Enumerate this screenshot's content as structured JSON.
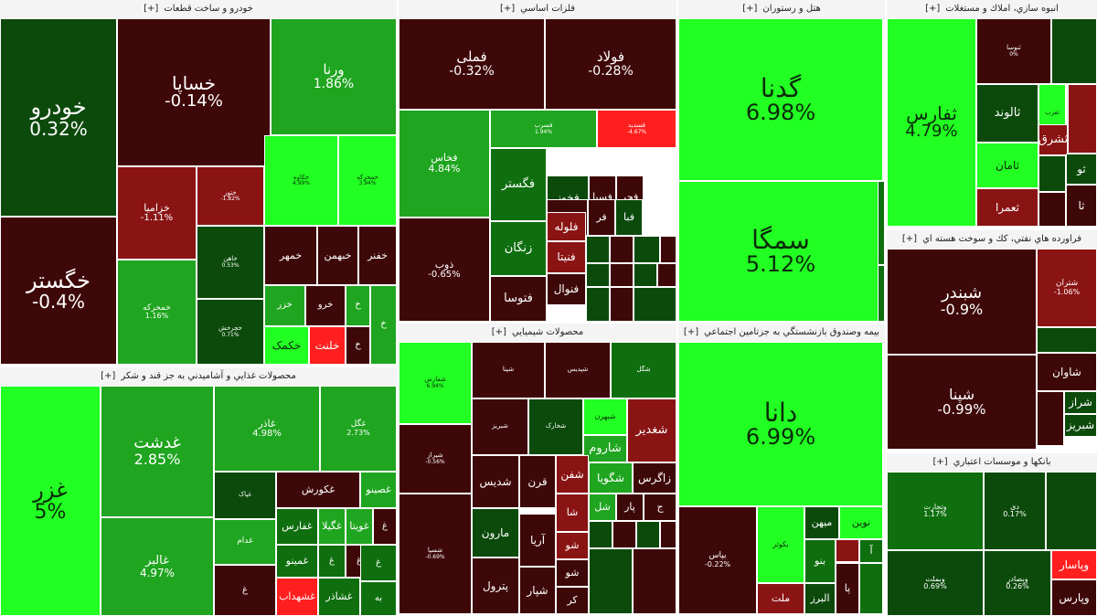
{
  "colors": {
    "pos3": "#22ff22",
    "pos2": "#1fa51f",
    "pos1": "#0f6f0f",
    "pos0": "#0c4a0c",
    "neg0": "#3e0808",
    "neg1": "#620f0f",
    "neg2": "#8a1414",
    "neg3": "#ff1f1f"
  },
  "chart_data": {
    "type": "treemap",
    "expand_label": "[+]",
    "sectors": [
      {
        "name": "خودرو و ساخت قطعات",
        "tiles": [
          {
            "symbol": "خودرو",
            "change": "0.32%",
            "tone": "pos0"
          },
          {
            "symbol": "خگستر",
            "change": "-0.4%",
            "tone": "neg0"
          },
          {
            "symbol": "خساپا",
            "change": "-0.14%",
            "tone": "neg0"
          },
          {
            "symbol": "ورنا",
            "change": "1.86%",
            "tone": "pos2"
          },
          {
            "symbol": "خزامیا",
            "change": "-1.11%",
            "tone": "neg2"
          },
          {
            "symbol": "ختور",
            "change": "-1.82%",
            "tone": "neg2"
          },
          {
            "symbol": "خکاوه",
            "change": "4.99%",
            "tone": "pos3"
          },
          {
            "symbol": "خمحرکه",
            "change": "3.94%",
            "tone": "pos3"
          },
          {
            "symbol": "خمحرکه",
            "change": "1.16%",
            "tone": "pos2"
          },
          {
            "symbol": "خاهن",
            "change": "0.53%",
            "tone": "pos0"
          },
          {
            "symbol": "خچرخش",
            "change": "0.71%",
            "tone": "pos0"
          },
          {
            "symbol": "خمهر",
            "change": "",
            "tone": "neg0"
          },
          {
            "symbol": "خبهمن",
            "change": "",
            "tone": "neg0"
          },
          {
            "symbol": "خفنر",
            "change": "",
            "tone": "neg0"
          },
          {
            "symbol": "خزر",
            "change": "",
            "tone": "pos2"
          },
          {
            "symbol": "خرو",
            "change": "",
            "tone": "neg0"
          },
          {
            "symbol": "خ",
            "change": "",
            "tone": "pos2"
          },
          {
            "symbol": "خکمک",
            "change": "",
            "tone": "pos3"
          },
          {
            "symbol": "خلنت",
            "change": "",
            "tone": "neg3"
          },
          {
            "symbol": "خ",
            "change": "",
            "tone": "neg0"
          },
          {
            "symbol": "خ",
            "change": "",
            "tone": "pos2"
          }
        ]
      },
      {
        "name": "فلزات اساسي",
        "tiles": [
          {
            "symbol": "فملی",
            "change": "-0.32%",
            "tone": "neg0"
          },
          {
            "symbol": "فولاد",
            "change": "-0.28%",
            "tone": "neg0"
          },
          {
            "symbol": "فخاس",
            "change": "4.84%",
            "tone": "pos2"
          },
          {
            "symbol": "فسرب",
            "change": "1.94%",
            "tone": "pos2"
          },
          {
            "symbol": "فسدید",
            "change": "-4.67%",
            "tone": "neg3"
          },
          {
            "symbol": "ذوب",
            "change": "-0.65%",
            "tone": "neg0"
          },
          {
            "symbol": "فگستر",
            "change": "",
            "tone": "pos1"
          },
          {
            "symbol": "زنگان",
            "change": "",
            "tone": "pos1"
          },
          {
            "symbol": "فتوسا",
            "change": "",
            "tone": "neg0"
          },
          {
            "symbol": "فخوز",
            "change": "",
            "tone": "pos0"
          },
          {
            "symbol": "فسبا",
            "change": "",
            "tone": "neg0"
          },
          {
            "symbol": "فجر",
            "change": "",
            "tone": "neg0"
          },
          {
            "symbol": "ف",
            "change": "",
            "tone": "neg0"
          },
          {
            "symbol": "فر",
            "change": "",
            "tone": "neg0"
          },
          {
            "symbol": "فبا",
            "change": "",
            "tone": "pos0"
          },
          {
            "symbol": "فلوله",
            "change": "",
            "tone": "neg2"
          },
          {
            "symbol": "فنيتا",
            "change": "",
            "tone": "neg2"
          },
          {
            "symbol": "فنوال",
            "change": "",
            "tone": "neg0"
          },
          {
            "symbol": "",
            "change": "",
            "tone": "pos0"
          },
          {
            "symbol": "",
            "change": "",
            "tone": "neg0"
          },
          {
            "symbol": "",
            "change": "",
            "tone": "pos0"
          },
          {
            "symbol": "",
            "change": "",
            "tone": "neg0"
          },
          {
            "symbol": "",
            "change": "",
            "tone": "pos0"
          },
          {
            "symbol": "",
            "change": "",
            "tone": "neg0"
          },
          {
            "symbol": "",
            "change": "",
            "tone": "pos0"
          },
          {
            "symbol": "",
            "change": "",
            "tone": "neg0"
          },
          {
            "symbol": "",
            "change": "",
            "tone": "pos0"
          },
          {
            "symbol": "",
            "change": "",
            "tone": "neg0"
          },
          {
            "symbol": "",
            "change": "",
            "tone": "pos0"
          }
        ]
      },
      {
        "name": "هتل و رستوران",
        "tiles": [
          {
            "symbol": "گدنا",
            "change": "6.98%",
            "tone": "pos3"
          },
          {
            "symbol": "سمگا",
            "change": "5.12%",
            "tone": "pos3"
          },
          {
            "symbol": "",
            "change": "",
            "tone": "pos1"
          },
          {
            "symbol": "",
            "change": "",
            "tone": "pos1"
          }
        ]
      },
      {
        "name": "انبوه سازي، املاك و مستغلات",
        "tiles": [
          {
            "symbol": "ثفارس",
            "change": "4.79%",
            "tone": "pos3"
          },
          {
            "symbol": "ثنوسا",
            "change": "0%",
            "tone": "neg0"
          },
          {
            "symbol": "",
            "change": "",
            "tone": "pos0"
          },
          {
            "symbol": "ثالوند",
            "change": "",
            "tone": "pos0"
          },
          {
            "symbol": "ثغرب",
            "change": "",
            "tone": "pos3"
          },
          {
            "symbol": "ثشرق",
            "change": "",
            "tone": "neg2"
          },
          {
            "symbol": "ثامان",
            "change": "",
            "tone": "pos3"
          },
          {
            "symbol": "",
            "change": "",
            "tone": "neg2"
          },
          {
            "symbol": "ثو",
            "change": "",
            "tone": "pos0"
          },
          {
            "symbol": "ثعمرا",
            "change": "",
            "tone": "neg2"
          },
          {
            "symbol": "",
            "change": "",
            "tone": "pos0"
          },
          {
            "symbol": "ثا",
            "change": "",
            "tone": "neg0"
          },
          {
            "symbol": "",
            "change": "",
            "tone": "neg0"
          },
          {
            "symbol": "",
            "change": "",
            "tone": "neg0"
          },
          {
            "symbol": "",
            "change": "",
            "tone": "neg0"
          }
        ]
      },
      {
        "name": "فراورده هاي نفتي، كك و سوخت هسته اي",
        "tiles": [
          {
            "symbol": "شبندر",
            "change": "-0.9%",
            "tone": "neg0"
          },
          {
            "symbol": "شتران",
            "change": "-1.06%",
            "tone": "neg2"
          },
          {
            "symbol": "",
            "change": "",
            "tone": "pos0"
          },
          {
            "symbol": "شپنا",
            "change": "-0.99%",
            "tone": "neg0"
          },
          {
            "symbol": "شاوان",
            "change": "",
            "tone": "neg0"
          },
          {
            "symbol": "",
            "change": "",
            "tone": "neg0"
          },
          {
            "symbol": "شراز",
            "change": "",
            "tone": "pos0"
          },
          {
            "symbol": "شبریز",
            "change": "",
            "tone": "pos0"
          },
          {
            "symbol": "ش",
            "change": "",
            "tone": "pos2"
          }
        ]
      },
      {
        "name": "محصولات غذايي و آشاميدني به جز قند و شكر",
        "tiles": [
          {
            "symbol": "غزر",
            "change": "5%",
            "tone": "pos3"
          },
          {
            "symbol": "غدشت",
            "change": "2.85%",
            "tone": "pos2"
          },
          {
            "symbol": "غالبر",
            "change": "4.97%",
            "tone": "pos2"
          },
          {
            "symbol": "غاذر",
            "change": "4.98%",
            "tone": "pos2"
          },
          {
            "symbol": "غگل",
            "change": "2.73%",
            "tone": "pos2"
          },
          {
            "symbol": "غپاک",
            "change": "",
            "tone": "pos0"
          },
          {
            "symbol": "غكورش",
            "change": "",
            "tone": "neg0"
          },
          {
            "symbol": "غصينو",
            "change": "",
            "tone": "pos2"
          },
          {
            "symbol": "غدام",
            "change": "",
            "tone": "pos2"
          },
          {
            "symbol": "غفارس",
            "change": "",
            "tone": "pos1"
          },
          {
            "symbol": "غگيلا",
            "change": "",
            "tone": "pos2"
          },
          {
            "symbol": "غويتا",
            "change": "",
            "tone": "pos2"
          },
          {
            "symbol": "غ",
            "change": "",
            "tone": "neg0"
          },
          {
            "symbol": "غ",
            "change": "",
            "tone": "neg0"
          },
          {
            "symbol": "غمينو",
            "change": "",
            "tone": "pos1"
          },
          {
            "symbol": "غ",
            "change": "",
            "tone": "pos1"
          },
          {
            "symbol": "غ",
            "change": "",
            "tone": "neg0"
          },
          {
            "symbol": "غشهداب",
            "change": "",
            "tone": "neg3"
          },
          {
            "symbol": "غشاذر",
            "change": "",
            "tone": "pos1"
          },
          {
            "symbol": "غ",
            "change": "",
            "tone": "pos1"
          },
          {
            "symbol": "به",
            "change": "",
            "tone": "pos1"
          },
          {
            "symbol": "",
            "change": "",
            "tone": "neg0"
          }
        ]
      },
      {
        "name": "محصولات شيميايي",
        "tiles": [
          {
            "symbol": "شفارس",
            "change": "6.94%",
            "tone": "pos3"
          },
          {
            "symbol": "شپنا",
            "change": "",
            "tone": "neg0"
          },
          {
            "symbol": "شپدیس",
            "change": "",
            "tone": "neg0"
          },
          {
            "symbol": "شگل",
            "change": "",
            "tone": "pos1"
          },
          {
            "symbol": "شبریز",
            "change": "",
            "tone": "neg0"
          },
          {
            "symbol": "شیراز",
            "change": "-0.56%",
            "tone": "neg0"
          },
          {
            "symbol": "شسپا",
            "change": "-0.69%",
            "tone": "neg0"
          },
          {
            "symbol": "شخارک",
            "change": "",
            "tone": "pos0"
          },
          {
            "symbol": "شبهرن",
            "change": "",
            "tone": "pos3"
          },
          {
            "symbol": "شاروم",
            "change": "",
            "tone": "pos2"
          },
          {
            "symbol": "شغدير",
            "change": "",
            "tone": "neg2"
          },
          {
            "symbol": "شديس",
            "change": "",
            "tone": "neg0"
          },
          {
            "symbol": "قرن",
            "change": "",
            "tone": "neg0"
          },
          {
            "symbol": "شفن",
            "change": "",
            "tone": "neg2"
          },
          {
            "symbol": "شگويا",
            "change": "",
            "tone": "pos2"
          },
          {
            "symbol": "زاگرس",
            "change": "",
            "tone": "neg0"
          },
          {
            "symbol": "مارون",
            "change": "",
            "tone": "pos0"
          },
          {
            "symbol": "آريا",
            "change": "",
            "tone": "neg0"
          },
          {
            "symbol": "شا",
            "change": "",
            "tone": "neg2"
          },
          {
            "symbol": "شل",
            "change": "",
            "tone": "pos2"
          },
          {
            "symbol": "پار",
            "change": "",
            "tone": "neg0"
          },
          {
            "symbol": "ج",
            "change": "",
            "tone": "neg0"
          },
          {
            "symbol": "پترول",
            "change": "",
            "tone": "neg0"
          },
          {
            "symbol": "شپار",
            "change": "",
            "tone": "neg0"
          },
          {
            "symbol": "شو",
            "change": "",
            "tone": "neg2"
          },
          {
            "symbol": "شو",
            "change": "",
            "tone": "neg0"
          },
          {
            "symbol": "کر",
            "change": "",
            "tone": "neg0"
          },
          {
            "symbol": "",
            "change": "",
            "tone": "pos0"
          },
          {
            "symbol": "",
            "change": "",
            "tone": "neg0"
          },
          {
            "symbol": "",
            "change": "",
            "tone": "pos0"
          },
          {
            "symbol": "",
            "change": "",
            "tone": "neg0"
          },
          {
            "symbol": "",
            "change": "",
            "tone": "pos0"
          },
          {
            "symbol": "",
            "change": "",
            "tone": "neg0"
          }
        ]
      },
      {
        "name": "بيمه وصندوق بازنشستگي به جزتامين اجتماعي",
        "tiles": [
          {
            "symbol": "دانا",
            "change": "6.99%",
            "tone": "pos3"
          },
          {
            "symbol": "بپاس",
            "change": "-0.22%",
            "tone": "neg0"
          },
          {
            "symbol": "بکوثر",
            "change": "",
            "tone": "pos3"
          },
          {
            "symbol": "ميهن",
            "change": "",
            "tone": "pos0"
          },
          {
            "symbol": "نوين",
            "change": "",
            "tone": "pos3"
          },
          {
            "symbol": "بنو",
            "change": "",
            "tone": "pos1"
          },
          {
            "symbol": "",
            "change": "",
            "tone": "neg2"
          },
          {
            "symbol": "آ",
            "change": "",
            "tone": "pos1"
          },
          {
            "symbol": "ملت",
            "change": "",
            "tone": "neg2"
          },
          {
            "symbol": "البرز",
            "change": "",
            "tone": "pos0"
          },
          {
            "symbol": "پا",
            "change": "",
            "tone": "neg0"
          },
          {
            "symbol": "",
            "change": "",
            "tone": "pos1"
          }
        ]
      },
      {
        "name": "بانكها و موسسات اعتباري",
        "tiles": [
          {
            "symbol": "وتجارت",
            "change": "1.17%",
            "tone": "pos1"
          },
          {
            "symbol": "دی",
            "change": "0.17%",
            "tone": "pos0"
          },
          {
            "symbol": "",
            "change": "",
            "tone": "pos0"
          },
          {
            "symbol": "وبملت",
            "change": "0.69%",
            "tone": "pos0"
          },
          {
            "symbol": "وبصادر",
            "change": "0.26%",
            "tone": "pos0"
          },
          {
            "symbol": "وپاسار",
            "change": "",
            "tone": "neg3"
          },
          {
            "symbol": "وپارس",
            "change": "",
            "tone": "neg0"
          }
        ]
      }
    ]
  }
}
